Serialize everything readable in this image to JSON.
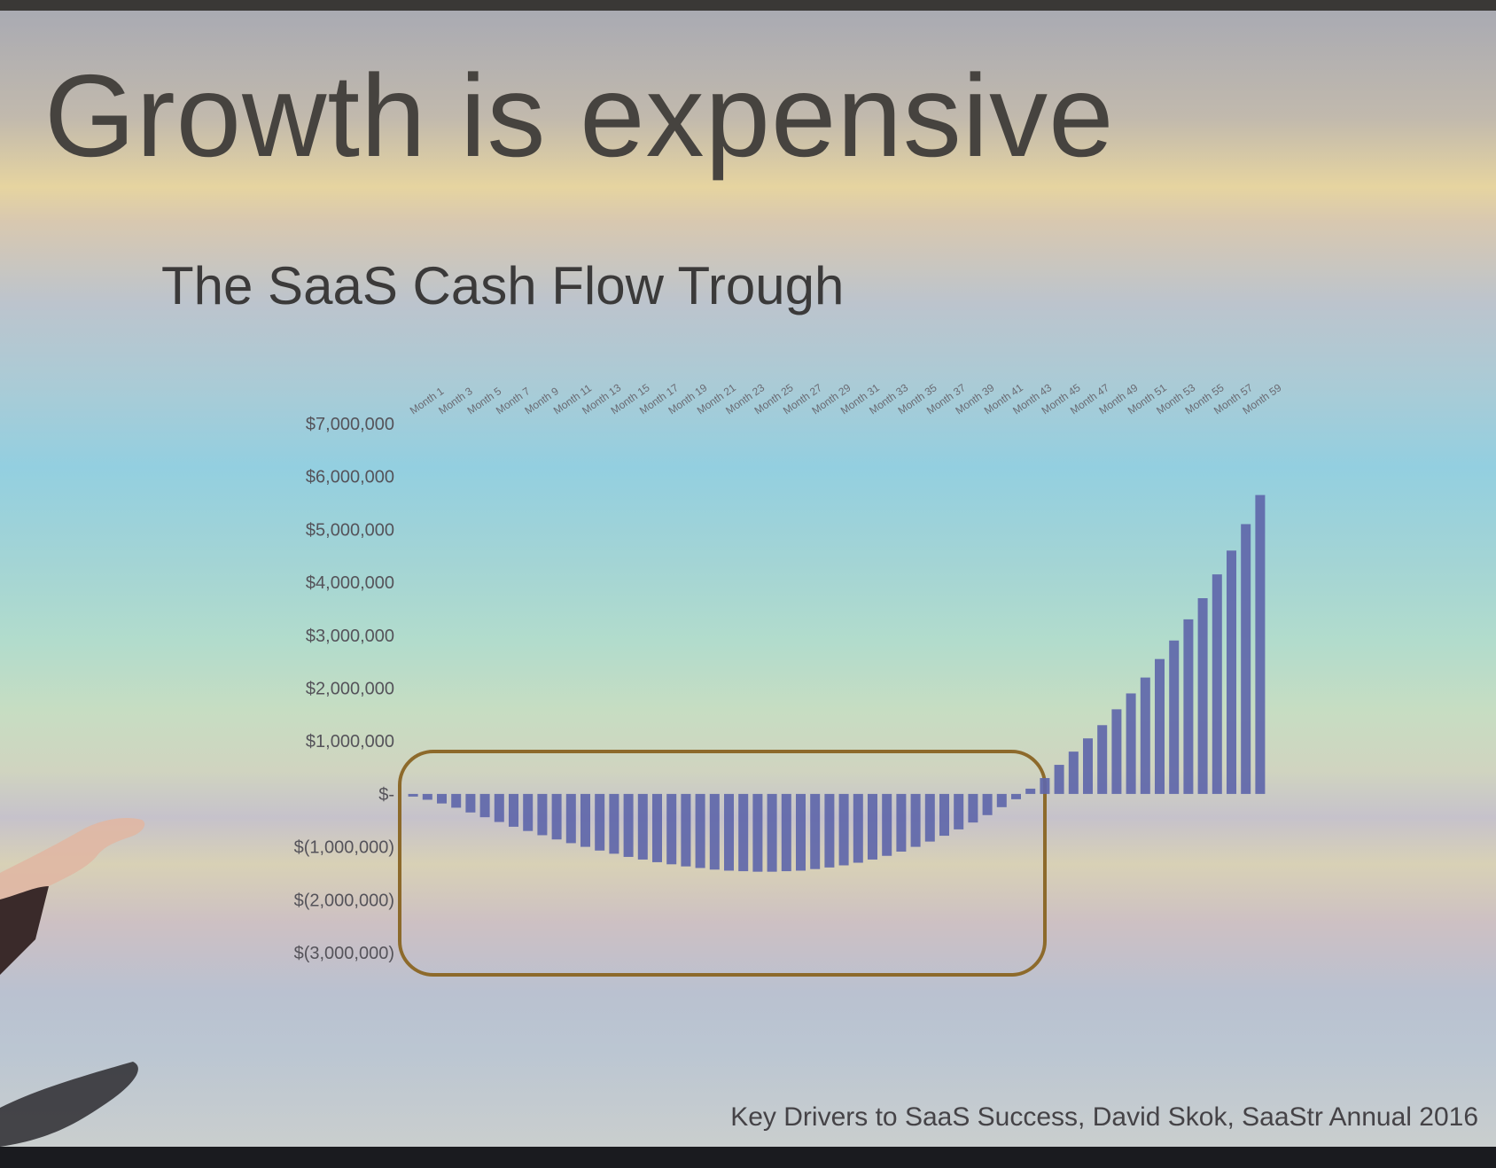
{
  "slide": {
    "title": "Growth is expensive",
    "subtitle": "The SaaS Cash Flow Trough",
    "footer": "Key Drivers to SaaS Success, David Skok, SaaStr Annual 2016"
  },
  "colors": {
    "bar": "#5f67aa",
    "highlight_box": "#8d6a2b",
    "text": "#46433f",
    "tick_text": "#55535a"
  },
  "chart_data": {
    "type": "bar",
    "title": "The SaaS Cash Flow Trough",
    "xlabel": "",
    "ylabel": "",
    "ylim": [
      -3000000,
      7000000
    ],
    "grid": false,
    "y_tick_values": [
      7000000,
      6000000,
      5000000,
      4000000,
      3000000,
      2000000,
      1000000,
      0,
      -1000000,
      -2000000,
      -3000000
    ],
    "y_tick_labels": [
      "$7,000,000",
      "$6,000,000",
      "$5,000,000",
      "$4,000,000",
      "$3,000,000",
      "$2,000,000",
      "$1,000,000",
      "$-",
      "$(1,000,000)",
      "$(2,000,000)",
      "$(3,000,000)"
    ],
    "x_tick_labels": [
      "Month 1",
      "Month 3",
      "Month 5",
      "Month 7",
      "Month 9",
      "Month 11",
      "Month 13",
      "Month 15",
      "Month 17",
      "Month 19",
      "Month 21",
      "Month 23",
      "Month 25",
      "Month 27",
      "Month 29",
      "Month 31",
      "Month 33",
      "Month 35",
      "Month 37",
      "Month 39",
      "Month 41",
      "Month 43",
      "Month 45",
      "Month 47",
      "Month 49",
      "Month 51",
      "Month 53",
      "Month 55",
      "Month 57",
      "Month 59"
    ],
    "categories": [
      "Month 1",
      "Month 2",
      "Month 3",
      "Month 4",
      "Month 5",
      "Month 6",
      "Month 7",
      "Month 8",
      "Month 9",
      "Month 10",
      "Month 11",
      "Month 12",
      "Month 13",
      "Month 14",
      "Month 15",
      "Month 16",
      "Month 17",
      "Month 18",
      "Month 19",
      "Month 20",
      "Month 21",
      "Month 22",
      "Month 23",
      "Month 24",
      "Month 25",
      "Month 26",
      "Month 27",
      "Month 28",
      "Month 29",
      "Month 30",
      "Month 31",
      "Month 32",
      "Month 33",
      "Month 34",
      "Month 35",
      "Month 36",
      "Month 37",
      "Month 38",
      "Month 39",
      "Month 40",
      "Month 41",
      "Month 42",
      "Month 43",
      "Month 44",
      "Month 45",
      "Month 46",
      "Month 47",
      "Month 48",
      "Month 49",
      "Month 50",
      "Month 51",
      "Month 52",
      "Month 53",
      "Month 54",
      "Month 55",
      "Month 56",
      "Month 57",
      "Month 58",
      "Month 59",
      "Month 60"
    ],
    "values": [
      -50000,
      -110000,
      -180000,
      -260000,
      -350000,
      -440000,
      -530000,
      -620000,
      -700000,
      -780000,
      -860000,
      -930000,
      -1000000,
      -1070000,
      -1130000,
      -1190000,
      -1240000,
      -1290000,
      -1330000,
      -1370000,
      -1400000,
      -1430000,
      -1450000,
      -1460000,
      -1470000,
      -1470000,
      -1460000,
      -1450000,
      -1420000,
      -1390000,
      -1350000,
      -1300000,
      -1240000,
      -1170000,
      -1090000,
      -1000000,
      -900000,
      -790000,
      -670000,
      -540000,
      -400000,
      -250000,
      -100000,
      100000,
      300000,
      550000,
      800000,
      1050000,
      1300000,
      1600000,
      1900000,
      2200000,
      2550000,
      2900000,
      3300000,
      3700000,
      4150000,
      4600000,
      5100000,
      5650000
    ],
    "highlight_box": "Month 1–Month 45 (cash flow trough)"
  }
}
